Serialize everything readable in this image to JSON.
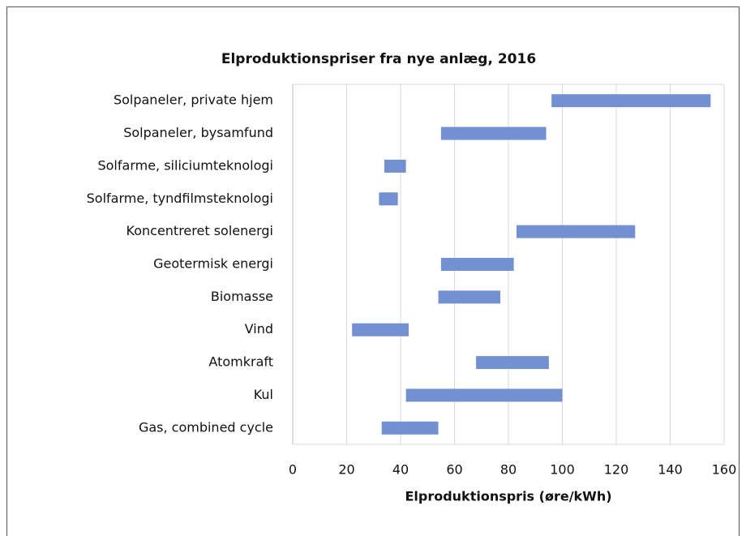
{
  "chart_data": {
    "type": "floating-bar",
    "title": "Elproduktionspriser fra nye anlæg, 2016",
    "x_label": "Elproduktionspris (øre/kWh)",
    "categories": [
      "Solpaneler, private hjem",
      "Solpaneler, bysamfund",
      "Solfarme, siliciumteknologi",
      "Solfarme, tyndfilmsteknologi",
      "Koncentreret solenergi",
      "Geotermisk energi",
      "Biomasse",
      "Vind",
      "Atomkraft",
      "Kul",
      "Gas, combined cycle"
    ],
    "low": [
      96,
      55,
      34,
      32,
      83,
      55,
      54,
      22,
      68,
      42,
      33
    ],
    "high": [
      155,
      94,
      42,
      39,
      127,
      82,
      77,
      43,
      95,
      100,
      54
    ],
    "color": "#7391d1",
    "xlim": [
      0,
      160
    ],
    "xticks": [
      0,
      20,
      40,
      60,
      80,
      100,
      120,
      140,
      160
    ],
    "grid": true
  }
}
